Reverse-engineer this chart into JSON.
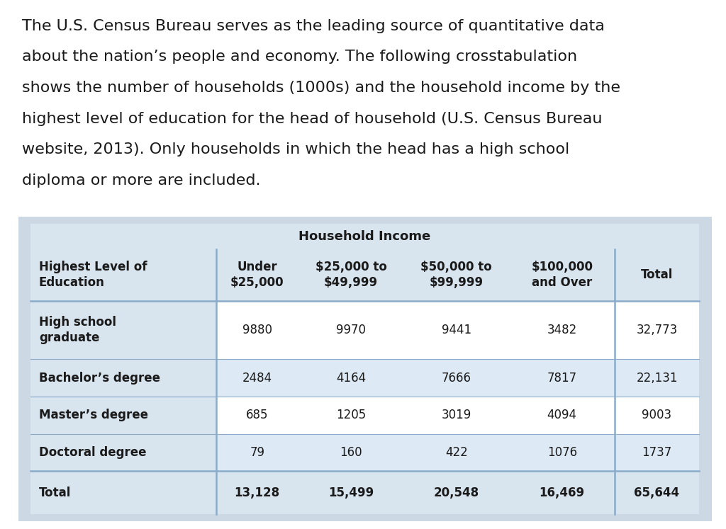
{
  "paragraph_lines": [
    "The U.S. Census Bureau serves as the leading source of quantitative data",
    "about the nation’s people and economy. The following crosstabulation",
    "shows the number of households (1000s) and the household income by the",
    "highest level of education for the head of household (U.S. Census Bureau",
    "website, 2013). Only households in which the head has a high school",
    "diploma or more are included."
  ],
  "table_title": "Household Income",
  "col_headers": [
    "Highest Level of\nEducation",
    "Under\n$25,000",
    "$25,000 to\n$49,999",
    "$50,000 to\n$99,999",
    "$100,000\nand Over",
    "Total"
  ],
  "rows": [
    {
      "label": "High school\ngraduate",
      "values": [
        "9880",
        "9970",
        "9441",
        "3482",
        "32,773"
      ]
    },
    {
      "label": "Bachelor’s degree",
      "values": [
        "2484",
        "4164",
        "7666",
        "7817",
        "22,131"
      ]
    },
    {
      "label": "Master’s degree",
      "values": [
        "685",
        "1205",
        "3019",
        "4094",
        "9003"
      ]
    },
    {
      "label": "Doctoral degree",
      "values": [
        "79",
        "160",
        "422",
        "1076",
        "1737"
      ]
    },
    {
      "label": "Total",
      "values": [
        "13,128",
        "15,499",
        "20,548",
        "16,469",
        "65,644"
      ]
    }
  ],
  "bg_white": "#ffffff",
  "bg_light_blue": "#ddeaf5",
  "bg_gray": "#d8e4ee",
  "bg_header_gray": "#cdd8e5",
  "bg_outer": "#cdd8e5",
  "line_color": "#8aacca",
  "text_dark": "#1a1a1a",
  "font_size_para": 16,
  "font_size_title": 13,
  "font_size_header": 12,
  "font_size_cell": 12
}
